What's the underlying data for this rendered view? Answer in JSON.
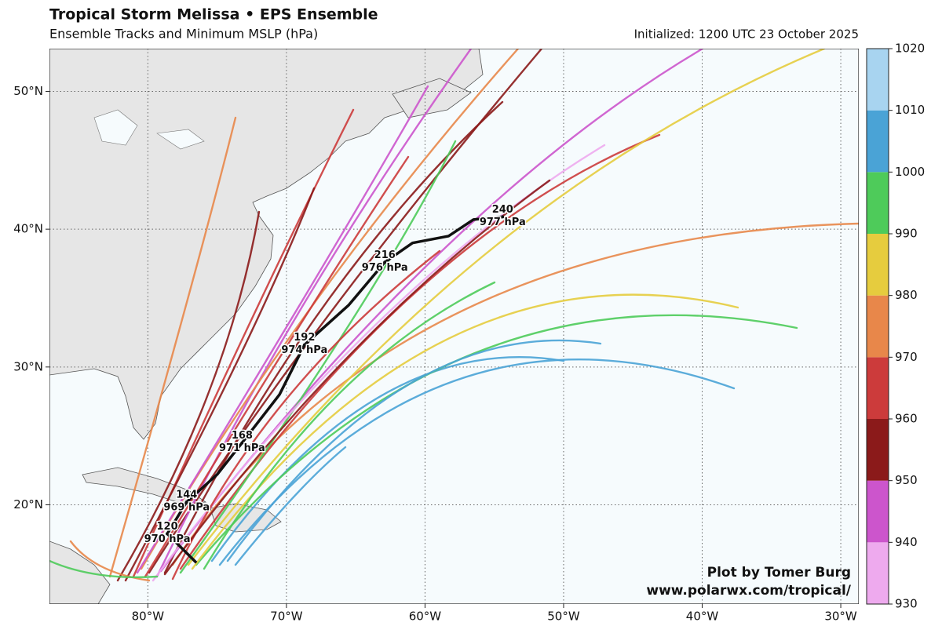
{
  "header": {
    "title": "Tropical Storm Melissa • EPS Ensemble",
    "subtitle": "Ensemble Tracks and Minimum MSLP (hPa)",
    "initialized": "Initialized: 1200 UTC 23 October 2025"
  },
  "map": {
    "lon_range": [
      -87.1,
      -28.7
    ],
    "lat_range": [
      12.8,
      53.1
    ],
    "lon_ticks": [
      {
        "value": -80,
        "label": "80°W"
      },
      {
        "value": -70,
        "label": "70°W"
      },
      {
        "value": -60,
        "label": "60°W"
      },
      {
        "value": -50,
        "label": "50°W"
      },
      {
        "value": -40,
        "label": "40°W"
      },
      {
        "value": -30,
        "label": "30°W"
      }
    ],
    "lat_ticks": [
      {
        "value": 20,
        "label": "20°N"
      },
      {
        "value": 30,
        "label": "30°N"
      },
      {
        "value": 40,
        "label": "40°N"
      },
      {
        "value": 50,
        "label": "50°N"
      }
    ],
    "mean_track": {
      "lon": [
        -76.5,
        -78.6,
        -77.2,
        -75.0,
        -73.2,
        -70.5,
        -68.7,
        -65.5,
        -62.9,
        -60.9,
        -58.3,
        -56.5,
        -54.4
      ],
      "lat": [
        15.8,
        17.9,
        20.2,
        22.2,
        24.5,
        28.0,
        31.6,
        34.5,
        37.6,
        39.0,
        39.5,
        40.7,
        40.9
      ],
      "color": "#111111"
    },
    "mean_labels": [
      {
        "hour": "120",
        "pressure": "970 hPa",
        "lon": -78.6,
        "lat": 17.9
      },
      {
        "hour": "144",
        "pressure": "969 hPa",
        "lon": -77.2,
        "lat": 20.2
      },
      {
        "hour": "168",
        "pressure": "971 hPa",
        "lon": -73.2,
        "lat": 24.5
      },
      {
        "hour": "192",
        "pressure": "974 hPa",
        "lon": -68.7,
        "lat": 31.6
      },
      {
        "hour": "216",
        "pressure": "976 hPa",
        "lon": -62.9,
        "lat": 37.6
      },
      {
        "hour": "240",
        "pressure": "977 hPa",
        "lon": -54.4,
        "lat": 40.9
      }
    ]
  },
  "colorbar": {
    "ticks": [
      930,
      940,
      950,
      960,
      970,
      980,
      990,
      1000,
      1010,
      1020
    ],
    "colors": [
      "#eeaaee",
      "#cc55cc",
      "#8b1a1a",
      "#cc3b3b",
      "#e8874a",
      "#e6cc3e",
      "#4ecb5a",
      "#4aa3d6",
      "#a8d4f0"
    ]
  },
  "credit": {
    "author": "Plot by Tomer Burg",
    "url": "www.polarwx.com/tropical/"
  }
}
